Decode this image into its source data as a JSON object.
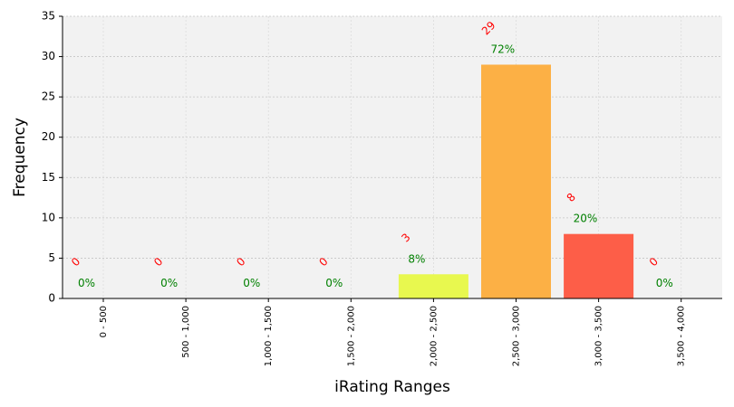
{
  "chart_data": {
    "type": "bar",
    "categories": [
      "0 - 500",
      "500 - 1,000",
      "1,000 - 1,500",
      "1,500 - 2,000",
      "2,000 - 2,500",
      "2,500 - 3,000",
      "3,000 - 3,500",
      "3,500 - 4,000"
    ],
    "values": [
      0,
      0,
      0,
      0,
      3,
      29,
      8,
      0
    ],
    "count_labels": [
      "0",
      "0",
      "0",
      "0",
      "3",
      "29",
      "8",
      "0"
    ],
    "percent_labels": [
      "0%",
      "0%",
      "0%",
      "0%",
      "8%",
      "72%",
      "20%",
      "0%"
    ],
    "bar_colors": [
      "#e8f84f",
      "#e8f84f",
      "#e8f84f",
      "#e8f84f",
      "#e8f84f",
      "#fcb045",
      "#fd5e48",
      "#fd5e48"
    ],
    "xlabel": "iRating Ranges",
    "ylabel": "Frequency",
    "ylim": [
      0,
      35
    ],
    "yticks": [
      0,
      5,
      10,
      15,
      20,
      25,
      30,
      35
    ],
    "grid": true,
    "background_color": "#f2f2f2",
    "count_label_color": "#ff0000",
    "percent_label_color": "#008000"
  }
}
